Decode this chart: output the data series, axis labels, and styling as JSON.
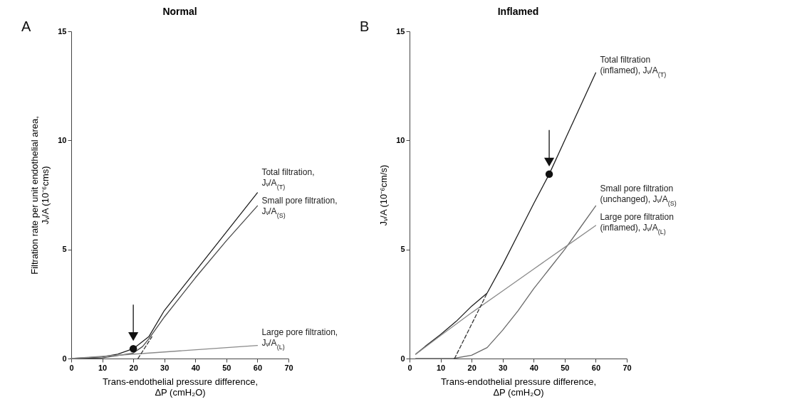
{
  "chart_data": [
    {
      "type": "line",
      "title": "Normal",
      "xlabel": "Trans-endothelial pressure difference,\nΔP (cmH₂O)",
      "ylabel": "Filtration rate per unit endothelial area,\nJᵥ/A (10⁻⁶cms)",
      "annotations": [
        "A"
      ],
      "xlim": [
        0,
        70
      ],
      "xticks": [
        0,
        10,
        20,
        30,
        40,
        50,
        60,
        70
      ],
      "ylim": [
        0,
        15
      ],
      "yticks": [
        0,
        5,
        10,
        15
      ],
      "grid": false,
      "series": [
        {
          "name": "Total filtration,\nJᵥ/A$_{(T)}$",
          "color": "#1e1e1e",
          "x": [
            0,
            10,
            15,
            20,
            25,
            30,
            40,
            50,
            60
          ],
          "values": [
            0,
            0.08,
            0.2,
            0.45,
            1.0,
            2.2,
            4.0,
            5.8,
            7.6
          ]
        },
        {
          "name": "Small pore filtration,\nJᵥ/A$_{(S)}$",
          "color": "#4a4a4a",
          "x": [
            0,
            10,
            20,
            23,
            25,
            30,
            40,
            50,
            60
          ],
          "values": [
            0,
            0.03,
            0.25,
            0.55,
            0.9,
            1.9,
            3.7,
            5.4,
            7.0
          ]
        },
        {
          "name": "Large pore filtration,\nJᵥ/A$_{(L)}$",
          "color": "#8a8a8a",
          "x": [
            0,
            60
          ],
          "values": [
            0,
            0.6
          ]
        },
        {
          "color": "#333333",
          "line_style": "dashed",
          "x": [
            21.5,
            26
          ],
          "values": [
            0,
            1.0
          ]
        },
        {
          "type": "scatter",
          "color": "#111111",
          "x": [
            20
          ],
          "values": [
            0.45
          ]
        }
      ]
    },
    {
      "type": "line",
      "title": "Inflamed",
      "xlabel": "Trans-endothelial pressure difference,\nΔP (cmH₂O)",
      "ylabel": "Jᵥ/A (10⁻⁶cm/s)",
      "annotations": [
        "B"
      ],
      "xlim": [
        0,
        70
      ],
      "xticks": [
        0,
        10,
        20,
        30,
        40,
        50,
        60,
        70
      ],
      "ylim": [
        0,
        15
      ],
      "yticks": [
        0,
        5,
        10,
        15
      ],
      "grid": false,
      "series": [
        {
          "name": "Total filtration\n(inflamed), Jᵥ/A$_{(T)}$",
          "color": "#1e1e1e",
          "x": [
            2,
            5,
            10,
            15,
            20,
            25,
            30,
            35,
            40,
            45,
            50,
            55,
            60
          ],
          "values": [
            0.2,
            0.55,
            1.1,
            1.7,
            2.4,
            3.0,
            4.3,
            5.7,
            7.1,
            8.45,
            10.0,
            11.55,
            13.1
          ]
        },
        {
          "name": "Small pore filtration\n(unchanged), Jᵥ/A$_{(S)}$",
          "color": "#6a6a6a",
          "x": [
            2,
            14,
            20,
            25,
            30,
            35,
            40,
            45,
            50,
            55,
            60
          ],
          "values": [
            0,
            0,
            0.15,
            0.5,
            1.3,
            2.2,
            3.2,
            4.1,
            5.0,
            6.0,
            7.0
          ]
        },
        {
          "name": "Large pore filtration\n(inflamed), Jᵥ/A$_{(L)}$",
          "color": "#8a8a8a",
          "x": [
            2,
            10,
            20,
            30,
            40,
            50,
            60
          ],
          "values": [
            0.2,
            1.05,
            2.1,
            3.1,
            4.1,
            5.1,
            6.1
          ]
        },
        {
          "color": "#333333",
          "line_style": "dashed",
          "x": [
            14.5,
            25
          ],
          "values": [
            0,
            3.0
          ]
        },
        {
          "type": "scatter",
          "color": "#111111",
          "x": [
            45
          ],
          "values": [
            8.45
          ]
        }
      ]
    }
  ]
}
